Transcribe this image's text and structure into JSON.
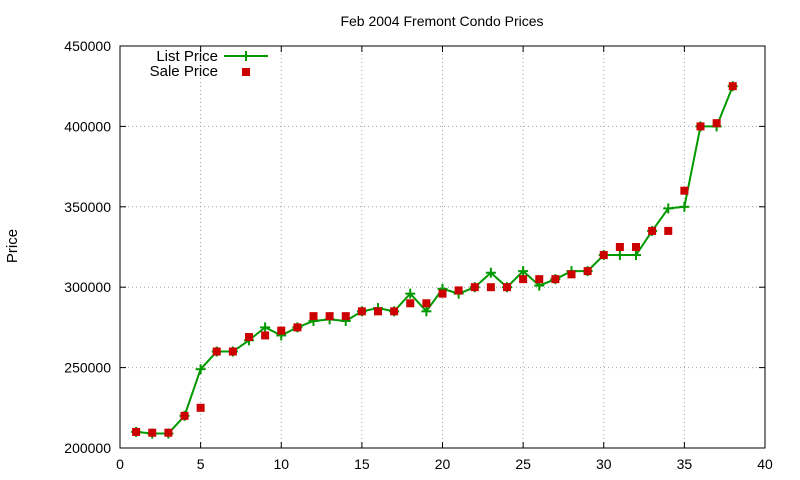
{
  "chart_data": {
    "type": "line",
    "title": "Feb 2004 Fremont Condo Prices",
    "xlabel": "",
    "ylabel": "Price",
    "xlim": [
      0,
      40
    ],
    "ylim": [
      200000,
      450000
    ],
    "x_ticks": [
      0,
      5,
      10,
      15,
      20,
      25,
      30,
      35,
      40
    ],
    "y_ticks": [
      200000,
      250000,
      300000,
      350000,
      400000,
      450000
    ],
    "x_tick_labels": [
      "0",
      "5",
      "10",
      "15",
      "20",
      "25",
      "30",
      "35",
      "40"
    ],
    "y_tick_labels": [
      "200000",
      "250000",
      "300000",
      "350000",
      "400000",
      "450000"
    ],
    "grid": true,
    "legend_position": "top-left",
    "series": [
      {
        "name": "List Price",
        "style": "line-plus",
        "color": "#009900",
        "x": [
          1,
          2,
          3,
          4,
          5,
          6,
          7,
          8,
          9,
          10,
          11,
          12,
          13,
          14,
          15,
          16,
          17,
          18,
          19,
          20,
          21,
          22,
          23,
          24,
          25,
          26,
          27,
          28,
          29,
          30,
          31,
          32,
          33,
          34,
          35,
          36,
          37,
          38
        ],
        "y": [
          210000,
          209000,
          209000,
          220000,
          249000,
          260000,
          260000,
          267000,
          275000,
          270000,
          275000,
          279000,
          280000,
          279000,
          285000,
          287000,
          285000,
          296000,
          285000,
          299000,
          296000,
          300000,
          309000,
          300000,
          310000,
          301000,
          305000,
          310000,
          310000,
          320000,
          320000,
          320000,
          335000,
          349000,
          350000,
          400000,
          400000,
          425000
        ]
      },
      {
        "name": "Sale Price",
        "style": "square-markers",
        "color": "#cc0000",
        "x": [
          1,
          2,
          3,
          4,
          5,
          6,
          7,
          8,
          9,
          10,
          11,
          12,
          13,
          14,
          15,
          16,
          17,
          18,
          19,
          20,
          21,
          22,
          23,
          24,
          25,
          26,
          27,
          28,
          29,
          30,
          31,
          32,
          33,
          34,
          35,
          36,
          37,
          38
        ],
        "y": [
          210000,
          209500,
          209500,
          220000,
          225000,
          260000,
          260000,
          269000,
          270000,
          273000,
          275000,
          282000,
          282000,
          282000,
          285000,
          285000,
          285000,
          290000,
          290000,
          296000,
          298000,
          300000,
          300000,
          300000,
          305000,
          305000,
          305000,
          308000,
          310000,
          320000,
          325000,
          325000,
          335000,
          335000,
          360000,
          400000,
          402000,
          425000
        ]
      }
    ]
  }
}
